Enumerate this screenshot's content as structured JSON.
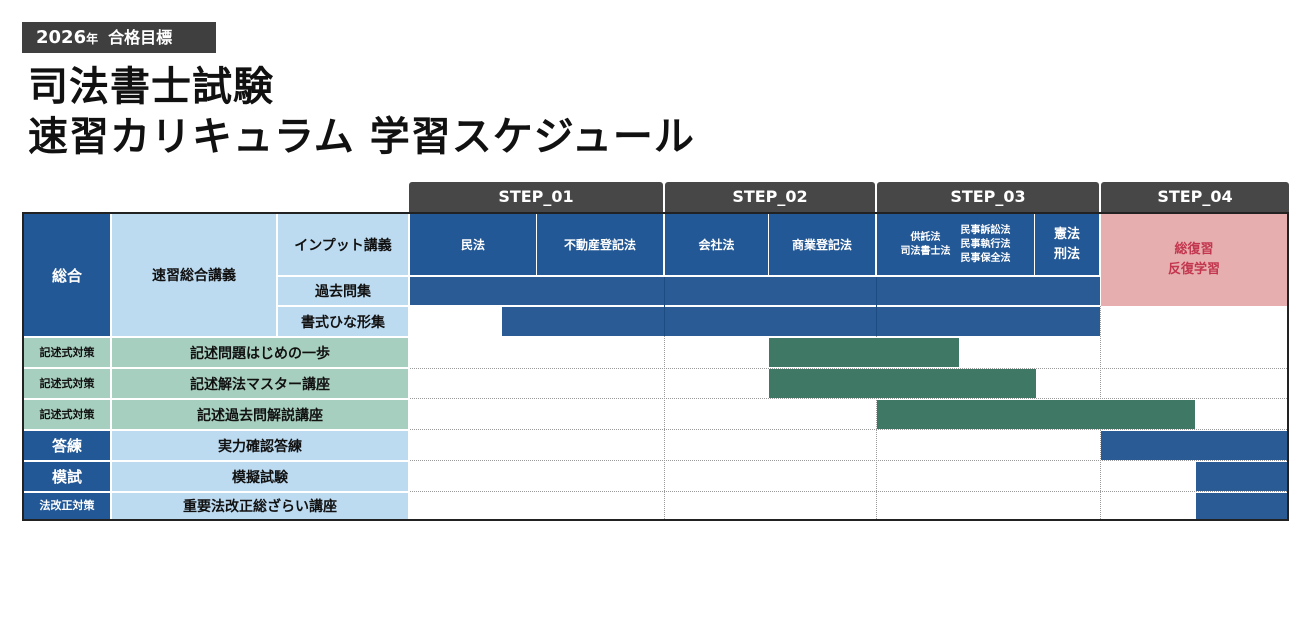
{
  "badge": {
    "year": "2026",
    "year_suffix": "年",
    "goal": "合格目標"
  },
  "title": {
    "line1": "司法書士試験",
    "line2": "速習カリキュラム 学習スケジュール"
  },
  "steps": [
    "STEP_01",
    "STEP_02",
    "STEP_03",
    "STEP_04"
  ],
  "general": {
    "label": "総合",
    "course": "速習総合講義",
    "sub": [
      "インプット講義",
      "過去問集",
      "書式ひな形集"
    ],
    "subjects": {
      "minpo": "民法",
      "fudosan": "不動産登記法",
      "kaisha": "会社法",
      "shogyo": "商業登記法",
      "kyotaku": "供託法",
      "shiho_shoshi": "司法書士法",
      "minji_sosho": "民事訴訟法",
      "minji_shikko": "民事執行法",
      "minji_hozen": "民事保全法",
      "kenpo": "憲法",
      "keiho": "刑法",
      "review1": "総復習",
      "review2": "反復学習"
    }
  },
  "rows": [
    {
      "category": "記述式対策",
      "course": "記述問題はじめの一歩"
    },
    {
      "category": "記述式対策",
      "course": "記述解法マスター講座"
    },
    {
      "category": "記述式対策",
      "course": "記述過去問解説講座"
    },
    {
      "category": "答練",
      "course": "実力確認答練"
    },
    {
      "category": "模試",
      "course": "模擬試験"
    },
    {
      "category": "法改正対策",
      "course": "重要法改正総ざらい講座"
    }
  ],
  "colors": {
    "navy": "#235896",
    "light_blue": "#bcdaf0",
    "mint": "#a7cfbf",
    "green": "#3f7865",
    "pink": "#e7aeb0",
    "pink_text": "#c2374e",
    "step_header": "#474747"
  }
}
